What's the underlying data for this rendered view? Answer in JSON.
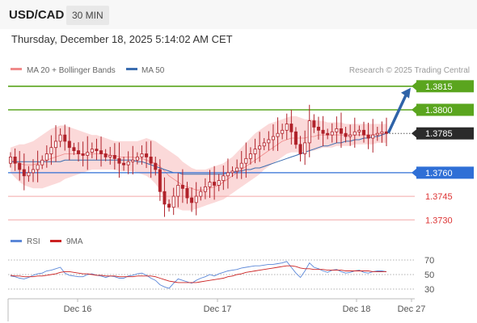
{
  "header": {
    "symbol": "USD/CAD",
    "timeframe": "30 MIN"
  },
  "timestamp": "Thursday, December 18, 2025 5:14:02 AM CET",
  "legend": {
    "ma20": "MA 20 + Bollinger Bands",
    "ma50": "MA 50"
  },
  "credit": "Research © 2025 Trading Central",
  "rsi_legend": {
    "rsi": "RSI",
    "ma9": "9MA"
  },
  "colors": {
    "candle": "#b0222a",
    "bollinger_fill": "#fbd9d9",
    "ma20": "#f08a8a",
    "ma50": "#3b6db0",
    "resistance": "#5aa51e",
    "support": "#2f6fd6",
    "support_weak": "#f3a8a8",
    "current": "#2b2b2b",
    "arrow": "#2f63a8",
    "rsi": "#5b87d8",
    "rsi_ma": "#cc2222"
  },
  "chart_data": [
    {
      "type": "candlestick",
      "title": "USD/CAD",
      "timeframe": "30 MIN",
      "x_ticks": [
        "Dec 16",
        "Dec 17",
        "Dec 18",
        "Dec 27"
      ],
      "ylim": [
        1.3728,
        1.382
      ],
      "current_price": 1.3785,
      "levels": [
        {
          "value": 1.3815,
          "label": "1.3815",
          "kind": "resistance"
        },
        {
          "value": 1.38,
          "label": "1.3800",
          "kind": "resistance"
        },
        {
          "value": 1.376,
          "label": "1.3760",
          "kind": "support"
        },
        {
          "value": 1.3745,
          "label": "1.3745",
          "kind": "support-weak"
        },
        {
          "value": 1.373,
          "label": "1.3730",
          "kind": "support-weak"
        }
      ],
      "forecast_arrow": {
        "from": 1.3785,
        "to": 1.3815
      },
      "series": [
        {
          "name": "Price",
          "close": [
            1.377,
            1.3766,
            1.3762,
            1.3758,
            1.376,
            1.3762,
            1.3765,
            1.3768,
            1.3772,
            1.3776,
            1.378,
            1.3784,
            1.378,
            1.3776,
            1.3774,
            1.3772,
            1.3771,
            1.3773,
            1.3775,
            1.3774,
            1.3772,
            1.377,
            1.3771,
            1.3769,
            1.3766,
            1.3765,
            1.3767,
            1.3768,
            1.377,
            1.3772,
            1.377,
            1.3766,
            1.3762,
            1.3748,
            1.374,
            1.3738,
            1.3745,
            1.3752,
            1.375,
            1.3744,
            1.3741,
            1.3745,
            1.3748,
            1.3751,
            1.3754,
            1.3752,
            1.3755,
            1.3758,
            1.376,
            1.3761,
            1.3763,
            1.3766,
            1.3769,
            1.3772,
            1.3775,
            1.3777,
            1.3779,
            1.3781,
            1.3783,
            1.3785,
            1.3787,
            1.3791,
            1.3786,
            1.3778,
            1.3772,
            1.3779,
            1.3793,
            1.3789,
            1.3787,
            1.3785,
            1.3784,
            1.3786,
            1.3788,
            1.3785,
            1.3783,
            1.3784,
            1.3786,
            1.3787,
            1.3784,
            1.3782,
            1.3784,
            1.3785,
            1.3786,
            1.3785
          ]
        },
        {
          "name": "MA 20",
          "values": [
            1.3768,
            1.3767,
            1.3766,
            1.3765,
            1.3765,
            1.3765,
            1.3766,
            1.3767,
            1.3768,
            1.3769,
            1.377,
            1.3771,
            1.3772,
            1.3772,
            1.3772,
            1.3772,
            1.3772,
            1.3772,
            1.3772,
            1.3772,
            1.3772,
            1.3772,
            1.3771,
            1.3771,
            1.377,
            1.377,
            1.377,
            1.377,
            1.3769,
            1.3769,
            1.3768,
            1.3767,
            1.3766,
            1.3764,
            1.3761,
            1.3758,
            1.3756,
            1.3754,
            1.3752,
            1.3751,
            1.375,
            1.3749,
            1.3749,
            1.3749,
            1.375,
            1.3751,
            1.3752,
            1.3754,
            1.3756,
            1.3758,
            1.376,
            1.3762,
            1.3764,
            1.3766,
            1.3768,
            1.377,
            1.3772,
            1.3774,
            1.3776,
            1.3778,
            1.378,
            1.3781,
            1.3782,
            1.3782,
            1.3782,
            1.3782,
            1.3783,
            1.3783,
            1.3784,
            1.3784,
            1.3784,
            1.3784,
            1.3784,
            1.3784,
            1.3784,
            1.3784,
            1.3784,
            1.3784,
            1.3784,
            1.3784,
            1.3784,
            1.3785,
            1.3785,
            1.3785
          ]
        },
        {
          "name": "MA 50",
          "values": [
            1.3767,
            1.3767,
            1.3767,
            1.3767,
            1.3767,
            1.3767,
            1.3767,
            1.3767,
            1.3767,
            1.3767,
            1.3767,
            1.3767,
            1.3768,
            1.3768,
            1.3768,
            1.3768,
            1.3768,
            1.3768,
            1.3768,
            1.3768,
            1.3768,
            1.3768,
            1.3768,
            1.3768,
            1.3768,
            1.3768,
            1.3768,
            1.3768,
            1.3767,
            1.3767,
            1.3766,
            1.3765,
            1.3764,
            1.3763,
            1.3762,
            1.3761,
            1.376,
            1.376,
            1.3759,
            1.3759,
            1.3759,
            1.3759,
            1.3759,
            1.3759,
            1.3759,
            1.3759,
            1.3759,
            1.3759,
            1.376,
            1.376,
            1.3761,
            1.3761,
            1.3762,
            1.3762,
            1.3763,
            1.3763,
            1.3764,
            1.3765,
            1.3766,
            1.3767,
            1.3768,
            1.3769,
            1.377,
            1.3771,
            1.3772,
            1.3773,
            1.3774,
            1.3775,
            1.3776,
            1.3777,
            1.3777,
            1.3778,
            1.3779,
            1.3779,
            1.378,
            1.378,
            1.3781,
            1.3781,
            1.3782,
            1.3782,
            1.3783,
            1.3783,
            1.3784,
            1.3785
          ]
        }
      ],
      "bollinger": {
        "upper": [
          1.3776,
          1.3777,
          1.3778,
          1.3778,
          1.3779,
          1.378,
          1.3782,
          1.3784,
          1.3786,
          1.3788,
          1.3789,
          1.379,
          1.379,
          1.3789,
          1.3788,
          1.3787,
          1.3786,
          1.3785,
          1.3784,
          1.3784,
          1.3783,
          1.3782,
          1.3781,
          1.378,
          1.378,
          1.378,
          1.378,
          1.378,
          1.378,
          1.3781,
          1.3782,
          1.3781,
          1.378,
          1.3778,
          1.3776,
          1.3774,
          1.3772,
          1.377,
          1.3767,
          1.3765,
          1.3763,
          1.3762,
          1.3762,
          1.3762,
          1.3763,
          1.3764,
          1.3765,
          1.3766,
          1.3768,
          1.377,
          1.3773,
          1.3776,
          1.3779,
          1.3782,
          1.3785,
          1.3787,
          1.3789,
          1.3791,
          1.3792,
          1.3793,
          1.3794,
          1.3795,
          1.3796,
          1.3796,
          1.3795,
          1.3794,
          1.3794,
          1.3794,
          1.3793,
          1.3793,
          1.3792,
          1.3792,
          1.3792,
          1.3792,
          1.3791,
          1.3791,
          1.3791,
          1.3791,
          1.3791,
          1.3791,
          1.3791,
          1.3791,
          1.3791,
          1.3791
        ],
        "lower": [
          1.376,
          1.3757,
          1.3754,
          1.3752,
          1.3751,
          1.375,
          1.375,
          1.375,
          1.3751,
          1.3752,
          1.3753,
          1.3754,
          1.3756,
          1.3757,
          1.3758,
          1.3759,
          1.376,
          1.3761,
          1.3762,
          1.3762,
          1.3762,
          1.3762,
          1.3762,
          1.3762,
          1.3761,
          1.3761,
          1.3761,
          1.3761,
          1.376,
          1.3759,
          1.3758,
          1.3756,
          1.3753,
          1.3749,
          1.3744,
          1.374,
          1.3738,
          1.3737,
          1.3736,
          1.3736,
          1.3736,
          1.3737,
          1.3738,
          1.3739,
          1.374,
          1.3741,
          1.3742,
          1.3743,
          1.3745,
          1.3747,
          1.3749,
          1.3751,
          1.3753,
          1.3755,
          1.3757,
          1.3759,
          1.3762,
          1.3764,
          1.3766,
          1.3768,
          1.377,
          1.3772,
          1.3773,
          1.3773,
          1.3773,
          1.3773,
          1.3774,
          1.3774,
          1.3775,
          1.3776,
          1.3776,
          1.3776,
          1.3777,
          1.3777,
          1.3777,
          1.3777,
          1.3778,
          1.3778,
          1.3778,
          1.3778,
          1.3778,
          1.3779,
          1.3779,
          1.3779
        ]
      }
    },
    {
      "type": "line",
      "title": "RSI",
      "yticks": [
        70,
        50,
        30
      ],
      "ylim": [
        25,
        75
      ],
      "series": [
        {
          "name": "RSI",
          "values": [
            48,
            47,
            45,
            44,
            46,
            49,
            51,
            52,
            55,
            56,
            58,
            60,
            52,
            49,
            48,
            47,
            47,
            50,
            51,
            49,
            48,
            46,
            48,
            47,
            45,
            45,
            48,
            49,
            51,
            52,
            49,
            45,
            42,
            36,
            33,
            31,
            38,
            44,
            42,
            40,
            38,
            42,
            45,
            47,
            50,
            48,
            51,
            53,
            55,
            56,
            57,
            59,
            60,
            61,
            62,
            62,
            63,
            64,
            64,
            65,
            66,
            68,
            60,
            52,
            46,
            55,
            66,
            60,
            58,
            55,
            53,
            56,
            57,
            54,
            52,
            53,
            55,
            56,
            53,
            52,
            54,
            55,
            55,
            54
          ]
        },
        {
          "name": "9MA",
          "values": [
            49,
            48,
            48,
            47,
            47,
            47,
            48,
            48,
            49,
            50,
            51,
            53,
            54,
            54,
            53,
            52,
            51,
            51,
            50,
            49,
            49,
            48,
            48,
            48,
            47,
            47,
            47,
            47,
            48,
            48,
            48,
            48,
            47,
            45,
            43,
            41,
            40,
            39,
            39,
            39,
            39,
            39,
            40,
            41,
            42,
            43,
            44,
            45,
            47,
            48,
            50,
            51,
            53,
            54,
            55,
            56,
            57,
            58,
            59,
            60,
            61,
            62,
            62,
            61,
            59,
            58,
            58,
            57,
            57,
            57,
            56,
            56,
            56,
            56,
            55,
            55,
            55,
            55,
            55,
            55,
            54,
            54,
            54,
            54
          ]
        }
      ]
    }
  ]
}
